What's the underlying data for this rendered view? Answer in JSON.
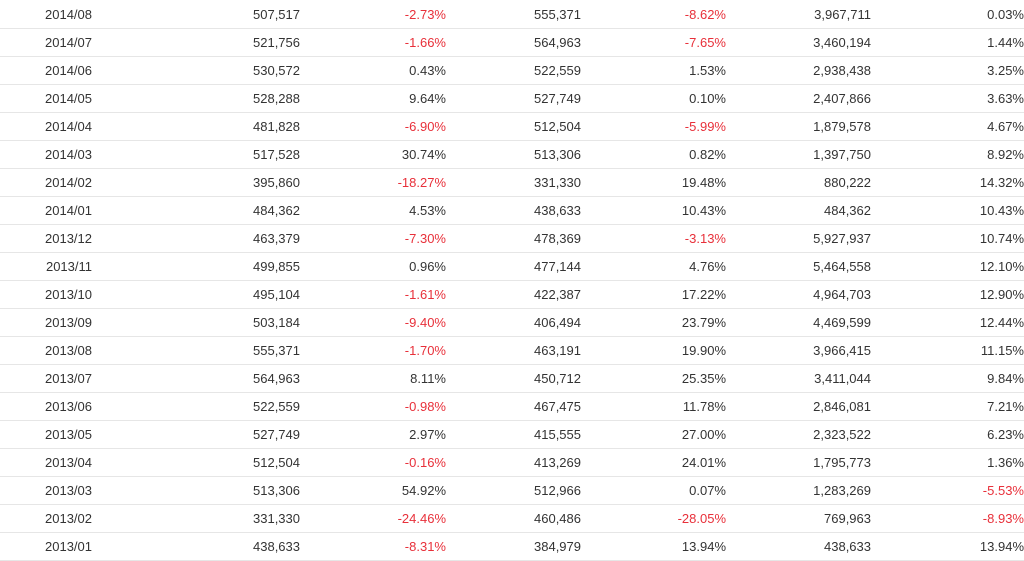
{
  "colors": {
    "negative": "#e8303a",
    "text": "#333333",
    "row_border": "#e6e6e6"
  },
  "rows": [
    {
      "month": "2014/08",
      "v1": "507,517",
      "p1": "-2.73%",
      "v2": "555,371",
      "p2": "-8.62%",
      "v3": "3,967,711",
      "p3": "0.03%"
    },
    {
      "month": "2014/07",
      "v1": "521,756",
      "p1": "-1.66%",
      "v2": "564,963",
      "p2": "-7.65%",
      "v3": "3,460,194",
      "p3": "1.44%"
    },
    {
      "month": "2014/06",
      "v1": "530,572",
      "p1": "0.43%",
      "v2": "522,559",
      "p2": "1.53%",
      "v3": "2,938,438",
      "p3": "3.25%"
    },
    {
      "month": "2014/05",
      "v1": "528,288",
      "p1": "9.64%",
      "v2": "527,749",
      "p2": "0.10%",
      "v3": "2,407,866",
      "p3": "3.63%"
    },
    {
      "month": "2014/04",
      "v1": "481,828",
      "p1": "-6.90%",
      "v2": "512,504",
      "p2": "-5.99%",
      "v3": "1,879,578",
      "p3": "4.67%"
    },
    {
      "month": "2014/03",
      "v1": "517,528",
      "p1": "30.74%",
      "v2": "513,306",
      "p2": "0.82%",
      "v3": "1,397,750",
      "p3": "8.92%"
    },
    {
      "month": "2014/02",
      "v1": "395,860",
      "p1": "-18.27%",
      "v2": "331,330",
      "p2": "19.48%",
      "v3": "880,222",
      "p3": "14.32%"
    },
    {
      "month": "2014/01",
      "v1": "484,362",
      "p1": "4.53%",
      "v2": "438,633",
      "p2": "10.43%",
      "v3": "484,362",
      "p3": "10.43%"
    },
    {
      "month": "2013/12",
      "v1": "463,379",
      "p1": "-7.30%",
      "v2": "478,369",
      "p2": "-3.13%",
      "v3": "5,927,937",
      "p3": "10.74%"
    },
    {
      "month": "2013/11",
      "v1": "499,855",
      "p1": "0.96%",
      "v2": "477,144",
      "p2": "4.76%",
      "v3": "5,464,558",
      "p3": "12.10%"
    },
    {
      "month": "2013/10",
      "v1": "495,104",
      "p1": "-1.61%",
      "v2": "422,387",
      "p2": "17.22%",
      "v3": "4,964,703",
      "p3": "12.90%"
    },
    {
      "month": "2013/09",
      "v1": "503,184",
      "p1": "-9.40%",
      "v2": "406,494",
      "p2": "23.79%",
      "v3": "4,469,599",
      "p3": "12.44%"
    },
    {
      "month": "2013/08",
      "v1": "555,371",
      "p1": "-1.70%",
      "v2": "463,191",
      "p2": "19.90%",
      "v3": "3,966,415",
      "p3": "11.15%"
    },
    {
      "month": "2013/07",
      "v1": "564,963",
      "p1": "8.11%",
      "v2": "450,712",
      "p2": "25.35%",
      "v3": "3,411,044",
      "p3": "9.84%"
    },
    {
      "month": "2013/06",
      "v1": "522,559",
      "p1": "-0.98%",
      "v2": "467,475",
      "p2": "11.78%",
      "v3": "2,846,081",
      "p3": "7.21%"
    },
    {
      "month": "2013/05",
      "v1": "527,749",
      "p1": "2.97%",
      "v2": "415,555",
      "p2": "27.00%",
      "v3": "2,323,522",
      "p3": "6.23%"
    },
    {
      "month": "2013/04",
      "v1": "512,504",
      "p1": "-0.16%",
      "v2": "413,269",
      "p2": "24.01%",
      "v3": "1,795,773",
      "p3": "1.36%"
    },
    {
      "month": "2013/03",
      "v1": "513,306",
      "p1": "54.92%",
      "v2": "512,966",
      "p2": "0.07%",
      "v3": "1,283,269",
      "p3": "-5.53%"
    },
    {
      "month": "2013/02",
      "v1": "331,330",
      "p1": "-24.46%",
      "v2": "460,486",
      "p2": "-28.05%",
      "v3": "769,963",
      "p3": "-8.93%"
    },
    {
      "month": "2013/01",
      "v1": "438,633",
      "p1": "-8.31%",
      "v2": "384,979",
      "p2": "13.94%",
      "v3": "438,633",
      "p3": "13.94%"
    }
  ]
}
